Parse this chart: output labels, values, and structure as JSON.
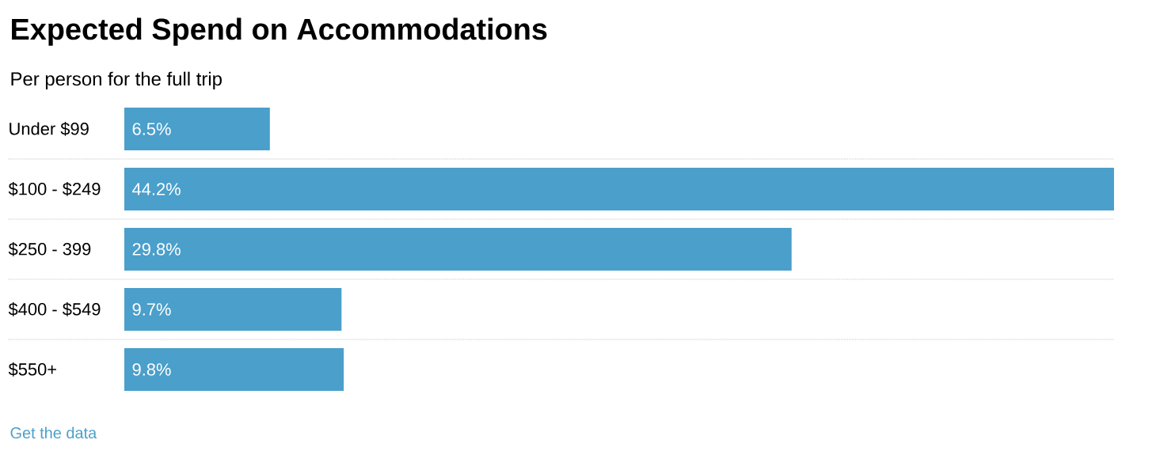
{
  "chart_data": {
    "type": "bar",
    "orientation": "horizontal",
    "title": "Expected Spend on Accommodations",
    "subtitle": "Per person for the full trip",
    "categories": [
      "Under $99",
      "$100 - $249",
      "$250 - 399",
      "$400 - $549",
      "$550+"
    ],
    "values": [
      6.5,
      44.2,
      29.8,
      9.7,
      9.8
    ],
    "value_labels": [
      "6.5%",
      "44.2%",
      "29.8%",
      "9.7%",
      "9.8%"
    ],
    "color": "#4a9fcb",
    "grid": "y",
    "tick_labels": "y",
    "annotations": [
      "Get the data"
    ]
  }
}
